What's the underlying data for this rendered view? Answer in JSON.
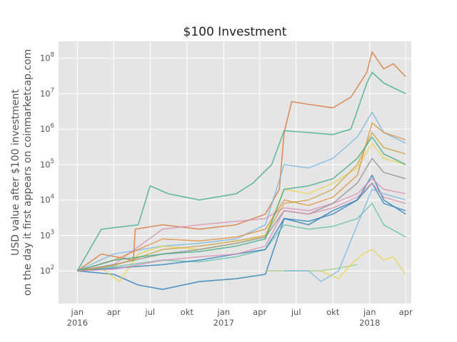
{
  "chart_data": {
    "type": "line",
    "title": "$100 Investment",
    "ylabel_line1": "USD value after $100 investment",
    "ylabel_line2": "on the day it first appears on coinmarketcap.com",
    "xlabel": "",
    "yscale": "log",
    "ylim": [
      12,
      300000000
    ],
    "xlim": [
      "2015-11-15",
      "2018-04-15"
    ],
    "grid": true,
    "legend": "none",
    "x_ticks": [
      {
        "date": "2016-01-01",
        "label": "jan",
        "sub": "2016"
      },
      {
        "date": "2016-04-01",
        "label": "apr",
        "sub": ""
      },
      {
        "date": "2016-07-01",
        "label": "jul",
        "sub": ""
      },
      {
        "date": "2016-10-01",
        "label": "okt",
        "sub": ""
      },
      {
        "date": "2017-01-01",
        "label": "jan",
        "sub": "2017"
      },
      {
        "date": "2017-04-01",
        "label": "apr",
        "sub": ""
      },
      {
        "date": "2017-07-01",
        "label": "jul",
        "sub": ""
      },
      {
        "date": "2017-10-01",
        "label": "okt",
        "sub": ""
      },
      {
        "date": "2018-01-01",
        "label": "jan",
        "sub": "2018"
      },
      {
        "date": "2018-04-01",
        "label": "apr",
        "sub": ""
      }
    ],
    "y_ticks": [
      {
        "value": 100,
        "base": "10",
        "exp": "2"
      },
      {
        "value": 1000,
        "base": "10",
        "exp": "3"
      },
      {
        "value": 10000,
        "base": "10",
        "exp": "4"
      },
      {
        "value": 100000,
        "base": "10",
        "exp": "5"
      },
      {
        "value": 1000000,
        "base": "10",
        "exp": "6"
      },
      {
        "value": 10000000,
        "base": "10",
        "exp": "7"
      },
      {
        "value": 100000000,
        "base": "10",
        "exp": "8"
      }
    ],
    "colors": {
      "background": "#e5e5e5",
      "grid": "#ffffff",
      "palette": [
        "#d6732f",
        "#3aa981",
        "#75b5e0",
        "#1f77b4",
        "#e8d44d",
        "#d98cb3",
        "#8e8e8e",
        "#5fbfa8",
        "#e08c3a",
        "#2a7fb8",
        "#c9a13f",
        "#9ccf7a"
      ]
    },
    "series": [
      {
        "color": "#d6732f",
        "points": [
          [
            "2016-01-01",
            100
          ],
          [
            "2016-03-01",
            300
          ],
          [
            "2016-05-20",
            200
          ],
          [
            "2016-05-25",
            1500
          ],
          [
            "2016-08-01",
            2000
          ],
          [
            "2016-11-01",
            1500
          ],
          [
            "2017-02-01",
            2000
          ],
          [
            "2017-04-15",
            4000
          ],
          [
            "2017-05-20",
            20000
          ],
          [
            "2017-06-01",
            800000
          ],
          [
            "2017-06-20",
            6000000
          ],
          [
            "2017-08-01",
            5000000
          ],
          [
            "2017-10-01",
            4000000
          ],
          [
            "2017-11-15",
            8000000
          ],
          [
            "2017-12-25",
            40000000
          ],
          [
            "2018-01-07",
            150000000
          ],
          [
            "2018-02-05",
            50000000
          ],
          [
            "2018-03-01",
            70000000
          ],
          [
            "2018-04-01",
            30000000
          ]
        ]
      },
      {
        "color": "#3aa981",
        "points": [
          [
            "2016-01-01",
            100
          ],
          [
            "2016-03-01",
            1500
          ],
          [
            "2016-06-01",
            2000
          ],
          [
            "2016-07-01",
            25000
          ],
          [
            "2016-08-15",
            15000
          ],
          [
            "2016-11-01",
            10000
          ],
          [
            "2017-02-01",
            15000
          ],
          [
            "2017-03-15",
            30000
          ],
          [
            "2017-05-01",
            100000
          ],
          [
            "2017-06-01",
            900000
          ],
          [
            "2017-08-01",
            800000
          ],
          [
            "2017-10-01",
            700000
          ],
          [
            "2017-11-15",
            1000000
          ],
          [
            "2017-12-25",
            20000000
          ],
          [
            "2018-01-07",
            40000000
          ],
          [
            "2018-02-05",
            20000000
          ],
          [
            "2018-04-01",
            10000000
          ]
        ]
      },
      {
        "color": "#75b5e0",
        "points": [
          [
            "2016-01-01",
            100
          ],
          [
            "2016-04-01",
            300
          ],
          [
            "2016-08-01",
            500
          ],
          [
            "2016-11-01",
            600
          ],
          [
            "2017-02-01",
            800
          ],
          [
            "2017-04-15",
            2000
          ],
          [
            "2017-06-01",
            100000
          ],
          [
            "2017-08-01",
            80000
          ],
          [
            "2017-10-01",
            150000
          ],
          [
            "2017-12-01",
            600000
          ],
          [
            "2018-01-07",
            3000000
          ],
          [
            "2018-02-05",
            800000
          ],
          [
            "2018-04-01",
            400000
          ]
        ]
      },
      {
        "color": "#1f77b4",
        "points": [
          [
            "2016-01-01",
            100
          ],
          [
            "2016-04-01",
            80
          ],
          [
            "2016-06-01",
            40
          ],
          [
            "2016-08-01",
            30
          ],
          [
            "2016-11-01",
            50
          ],
          [
            "2017-02-01",
            60
          ],
          [
            "2017-04-15",
            80
          ],
          [
            "2017-06-01",
            3000
          ],
          [
            "2017-08-01",
            2000
          ],
          [
            "2017-10-01",
            5000
          ],
          [
            "2017-12-01",
            10000
          ],
          [
            "2018-01-07",
            50000
          ],
          [
            "2018-02-05",
            10000
          ],
          [
            "2018-04-01",
            4000
          ]
        ]
      },
      {
        "color": "#e8d44d",
        "points": [
          [
            "2016-01-01",
            100
          ],
          [
            "2016-03-01",
            120
          ],
          [
            "2016-04-15",
            50
          ],
          [
            "2016-06-01",
            300
          ],
          [
            "2016-08-01",
            500
          ],
          [
            "2016-11-01",
            400
          ],
          [
            "2017-02-01",
            600
          ],
          [
            "2017-04-15",
            1000
          ],
          [
            "2017-06-01",
            20000
          ],
          [
            "2017-08-01",
            15000
          ],
          [
            "2017-10-01",
            30000
          ],
          [
            "2017-12-01",
            80000
          ],
          [
            "2018-01-07",
            400000
          ],
          [
            "2018-02-05",
            150000
          ],
          [
            "2018-04-01",
            100000
          ]
        ]
      },
      {
        "color": "#d98cb3",
        "points": [
          [
            "2016-01-01",
            100
          ],
          [
            "2016-04-01",
            150
          ],
          [
            "2016-08-01",
            1500
          ],
          [
            "2016-11-01",
            2000
          ],
          [
            "2017-02-01",
            2500
          ],
          [
            "2017-04-15",
            3000
          ],
          [
            "2017-06-01",
            6000
          ],
          [
            "2017-08-01",
            5000
          ],
          [
            "2017-10-01",
            8000
          ],
          [
            "2017-12-01",
            15000
          ],
          [
            "2018-01-07",
            40000
          ],
          [
            "2018-02-05",
            20000
          ],
          [
            "2018-04-01",
            15000
          ]
        ]
      },
      {
        "color": "#8e8e8e",
        "points": [
          [
            "2016-01-01",
            100
          ],
          [
            "2016-04-01",
            150
          ],
          [
            "2016-08-01",
            300
          ],
          [
            "2016-11-01",
            400
          ],
          [
            "2017-02-01",
            600
          ],
          [
            "2017-04-15",
            900
          ],
          [
            "2017-06-01",
            5000
          ],
          [
            "2017-08-01",
            4000
          ],
          [
            "2017-10-01",
            8000
          ],
          [
            "2017-12-01",
            30000
          ],
          [
            "2018-01-07",
            150000
          ],
          [
            "2018-02-05",
            60000
          ],
          [
            "2018-04-01",
            40000
          ]
        ]
      },
      {
        "color": "#5fbfa8",
        "points": [
          [
            "2016-01-01",
            100
          ],
          [
            "2016-04-01",
            130
          ],
          [
            "2016-08-01",
            200
          ],
          [
            "2016-11-01",
            180
          ],
          [
            "2017-02-01",
            250
          ],
          [
            "2017-04-15",
            400
          ],
          [
            "2017-06-01",
            2000
          ],
          [
            "2017-08-01",
            1500
          ],
          [
            "2017-10-01",
            1800
          ],
          [
            "2017-12-01",
            3000
          ],
          [
            "2018-01-07",
            8000
          ],
          [
            "2018-02-05",
            2000
          ],
          [
            "2018-04-01",
            900
          ]
        ]
      },
      {
        "color": "#e08c3a",
        "points": [
          [
            "2016-01-01",
            100
          ],
          [
            "2016-04-01",
            200
          ],
          [
            "2016-08-01",
            800
          ],
          [
            "2016-11-01",
            700
          ],
          [
            "2017-02-01",
            900
          ],
          [
            "2017-04-15",
            1500
          ],
          [
            "2017-06-01",
            10000
          ],
          [
            "2017-08-01",
            7000
          ],
          [
            "2017-10-01",
            12000
          ],
          [
            "2017-12-01",
            50000
          ],
          [
            "2018-01-07",
            1500000
          ],
          [
            "2018-02-05",
            800000
          ],
          [
            "2018-04-01",
            500000
          ]
        ]
      },
      {
        "color": "#2a7fb8",
        "points": [
          [
            "2016-01-01",
            100
          ],
          [
            "2016-04-01",
            120
          ],
          [
            "2016-08-01",
            150
          ],
          [
            "2016-11-01",
            200
          ],
          [
            "2017-02-01",
            300
          ],
          [
            "2017-04-15",
            400
          ],
          [
            "2017-06-01",
            3000
          ],
          [
            "2017-08-01",
            2500
          ],
          [
            "2017-10-01",
            4000
          ],
          [
            "2017-12-01",
            10000
          ],
          [
            "2018-01-07",
            30000
          ],
          [
            "2018-02-05",
            8000
          ],
          [
            "2018-04-01",
            5000
          ]
        ]
      },
      {
        "color": "#c9a13f",
        "points": [
          [
            "2016-01-01",
            100
          ],
          [
            "2016-04-01",
            140
          ],
          [
            "2016-08-01",
            400
          ],
          [
            "2016-11-01",
            500
          ],
          [
            "2017-02-01",
            700
          ],
          [
            "2017-04-15",
            1000
          ],
          [
            "2017-06-01",
            8000
          ],
          [
            "2017-08-01",
            10000
          ],
          [
            "2017-10-01",
            20000
          ],
          [
            "2017-12-01",
            100000
          ],
          [
            "2018-01-07",
            800000
          ],
          [
            "2018-02-05",
            300000
          ],
          [
            "2018-04-01",
            200000
          ]
        ]
      },
      {
        "color": "#9ccf7a",
        "points": [
          [
            "2017-04-15",
            100
          ],
          [
            "2017-07-01",
            100
          ],
          [
            "2017-09-01",
            100
          ],
          [
            "2017-10-15",
            120
          ],
          [
            "2017-12-01",
            150
          ]
        ]
      },
      {
        "color": "#75b5e0",
        "points": [
          [
            "2017-06-01",
            100
          ],
          [
            "2017-08-01",
            100
          ],
          [
            "2017-09-01",
            50
          ],
          [
            "2017-10-15",
            100
          ],
          [
            "2017-12-01",
            2000
          ],
          [
            "2018-01-07",
            20000
          ],
          [
            "2018-02-05",
            15000
          ],
          [
            "2018-04-01",
            10000
          ]
        ]
      },
      {
        "color": "#e8d44d",
        "points": [
          [
            "2017-09-01",
            100
          ],
          [
            "2017-10-15",
            60
          ],
          [
            "2017-11-15",
            150
          ],
          [
            "2017-12-15",
            300
          ],
          [
            "2018-01-07",
            400
          ],
          [
            "2018-02-05",
            200
          ],
          [
            "2018-03-01",
            250
          ],
          [
            "2018-04-01",
            80
          ]
        ]
      },
      {
        "color": "#3aa981",
        "points": [
          [
            "2016-01-01",
            100
          ],
          [
            "2016-04-01",
            200
          ],
          [
            "2016-08-01",
            300
          ],
          [
            "2016-11-01",
            350
          ],
          [
            "2017-02-01",
            500
          ],
          [
            "2017-04-15",
            800
          ],
          [
            "2017-06-01",
            20000
          ],
          [
            "2017-08-01",
            25000
          ],
          [
            "2017-10-01",
            40000
          ],
          [
            "2017-12-01",
            150000
          ],
          [
            "2018-01-07",
            600000
          ],
          [
            "2018-02-05",
            200000
          ],
          [
            "2018-04-01",
            100000
          ]
        ]
      },
      {
        "color": "#d98cb3",
        "points": [
          [
            "2016-01-01",
            100
          ],
          [
            "2016-04-01",
            110
          ],
          [
            "2016-08-01",
            200
          ],
          [
            "2016-11-01",
            250
          ],
          [
            "2017-02-01",
            300
          ],
          [
            "2017-04-15",
            500
          ],
          [
            "2017-06-01",
            5000
          ],
          [
            "2017-08-01",
            4000
          ],
          [
            "2017-10-01",
            6000
          ],
          [
            "2017-12-01",
            12000
          ],
          [
            "2018-01-07",
            30000
          ],
          [
            "2018-02-05",
            12000
          ],
          [
            "2018-04-01",
            8000
          ]
        ]
      }
    ]
  }
}
